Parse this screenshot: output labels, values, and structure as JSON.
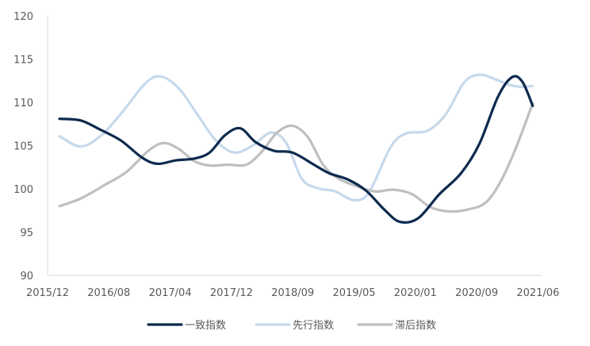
{
  "chart_data": {
    "type": "line",
    "title": "",
    "xlabel": "",
    "ylabel": "",
    "ylim": [
      90,
      120
    ],
    "yticks": [
      90,
      95,
      100,
      105,
      110,
      115,
      120
    ],
    "xticks": [
      "2015/12",
      "2016/08",
      "2017/04",
      "2017/12",
      "2018/09",
      "2019/05",
      "2020/01",
      "2020/09",
      "2021/06"
    ],
    "legend_position": "bottom",
    "grid": false,
    "series": [
      {
        "name": "一致指数",
        "color": "#0d2a4e",
        "points": [
          [
            0,
            108.1
          ],
          [
            0.35,
            107.9
          ],
          [
            0.65,
            106.9
          ],
          [
            1.0,
            105.6
          ],
          [
            1.35,
            103.6
          ],
          [
            1.6,
            102.9
          ],
          [
            1.9,
            103.3
          ],
          [
            2.2,
            103.5
          ],
          [
            2.45,
            104.2
          ],
          [
            2.7,
            106.2
          ],
          [
            2.95,
            107.0
          ],
          [
            3.2,
            105.4
          ],
          [
            3.5,
            104.4
          ],
          [
            3.8,
            104.2
          ],
          [
            4.15,
            102.8
          ],
          [
            4.4,
            101.8
          ],
          [
            4.7,
            101.1
          ],
          [
            5.0,
            99.8
          ],
          [
            5.3,
            97.6
          ],
          [
            5.55,
            96.2
          ],
          [
            5.85,
            96.6
          ],
          [
            6.2,
            99.4
          ],
          [
            6.55,
            101.8
          ],
          [
            6.85,
            105.2
          ],
          [
            7.15,
            110.6
          ],
          [
            7.38,
            112.9
          ],
          [
            7.55,
            112.4
          ],
          [
            7.72,
            109.6
          ]
        ]
      },
      {
        "name": "先行指数",
        "color": "#c6d9ec",
        "points": [
          [
            0,
            106.1
          ],
          [
            0.35,
            104.9
          ],
          [
            0.7,
            106.3
          ],
          [
            1.05,
            109.1
          ],
          [
            1.4,
            112.2
          ],
          [
            1.65,
            113.0
          ],
          [
            1.95,
            111.6
          ],
          [
            2.25,
            108.6
          ],
          [
            2.55,
            105.6
          ],
          [
            2.85,
            104.2
          ],
          [
            3.15,
            105.0
          ],
          [
            3.45,
            106.5
          ],
          [
            3.7,
            105.3
          ],
          [
            3.95,
            101.2
          ],
          [
            4.2,
            100.1
          ],
          [
            4.5,
            99.7
          ],
          [
            4.8,
            98.7
          ],
          [
            5.05,
            99.6
          ],
          [
            5.4,
            104.8
          ],
          [
            5.65,
            106.4
          ],
          [
            6.0,
            106.7
          ],
          [
            6.3,
            108.6
          ],
          [
            6.6,
            112.3
          ],
          [
            6.85,
            113.2
          ],
          [
            7.1,
            112.7
          ],
          [
            7.35,
            112.0
          ],
          [
            7.55,
            111.8
          ],
          [
            7.72,
            111.9
          ]
        ]
      },
      {
        "name": "滞后指数",
        "color": "#bfbfbf",
        "points": [
          [
            0,
            98.0
          ],
          [
            0.35,
            98.9
          ],
          [
            0.75,
            100.5
          ],
          [
            1.1,
            102.0
          ],
          [
            1.45,
            104.4
          ],
          [
            1.7,
            105.3
          ],
          [
            1.95,
            104.6
          ],
          [
            2.2,
            103.2
          ],
          [
            2.45,
            102.7
          ],
          [
            2.75,
            102.8
          ],
          [
            3.05,
            102.8
          ],
          [
            3.3,
            104.3
          ],
          [
            3.55,
            106.5
          ],
          [
            3.8,
            107.3
          ],
          [
            4.05,
            106.0
          ],
          [
            4.3,
            102.8
          ],
          [
            4.55,
            101.2
          ],
          [
            4.85,
            100.3
          ],
          [
            5.15,
            99.7
          ],
          [
            5.45,
            99.9
          ],
          [
            5.75,
            99.4
          ],
          [
            6.05,
            97.9
          ],
          [
            6.35,
            97.4
          ],
          [
            6.65,
            97.6
          ],
          [
            6.95,
            98.4
          ],
          [
            7.2,
            100.9
          ],
          [
            7.45,
            104.8
          ],
          [
            7.72,
            109.9
          ]
        ]
      }
    ]
  }
}
